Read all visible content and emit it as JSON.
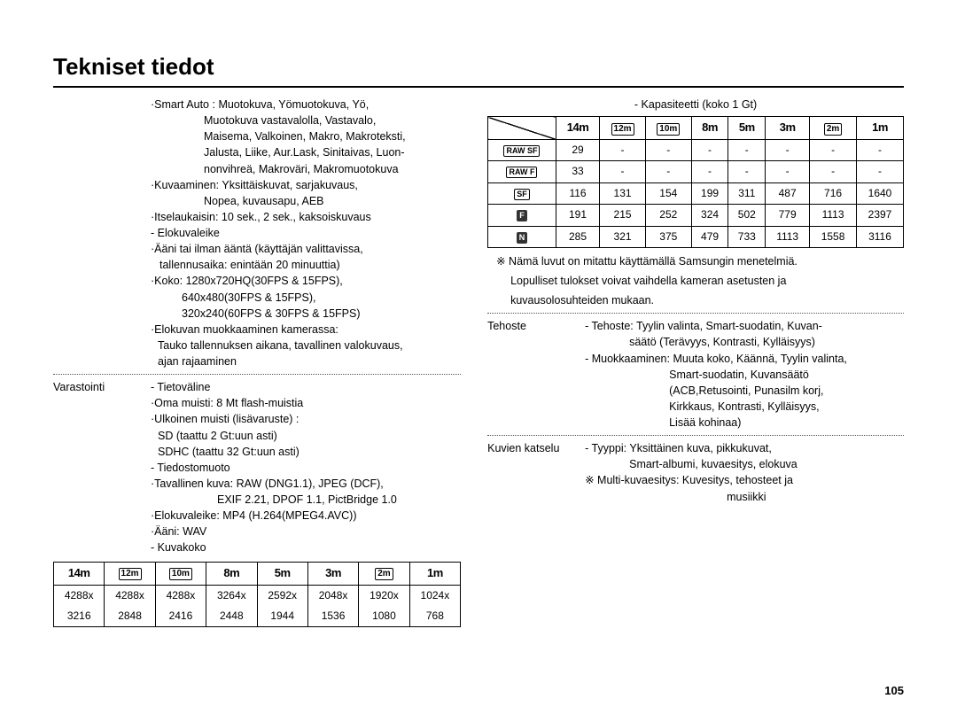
{
  "title": "Tekniset tiedot",
  "page_number": "105",
  "colors": {
    "text": "#000000",
    "bg": "#ffffff",
    "sep": "#555555"
  },
  "left": {
    "smart_auto_label": "·Smart Auto :",
    "smart_auto_l1": "Muotokuva, Yömuotokuva, Yö,",
    "smart_auto_l2": "Muotokuva vastavalolla, Vastavalo,",
    "smart_auto_l3": "Maisema, Valkoinen, Makro, Makroteksti,",
    "smart_auto_l4": "Jalusta, Liike, Aur.Lask, Sinitaivas, Luon-",
    "smart_auto_l5": "nonvihreä, Makroväri, Makromuotokuva",
    "kuvaaminen_l1": "·Kuvaaminen: Yksittäiskuvat, sarjakuvaus,",
    "kuvaaminen_l2": "Nopea, kuvausapu, AEB",
    "itselaukaisin": "·Itselaukaisin: 10 sek., 2 sek., kaksoiskuvaus",
    "elokuvaleike_h": "- Elokuvaleike",
    "aani_l1": "·Ääni tai ilman ääntä (käyttäjän valittavissa,",
    "aani_l2": "tallennusaika: enintään 20 minuuttia)",
    "koko_l1": "·Koko: 1280x720HQ(30FPS & 15FPS),",
    "koko_l2": "640x480(30FPS & 15FPS),",
    "koko_l3": "320x240(60FPS & 30FPS & 15FPS)",
    "elokuvan_l1": "·Elokuvan muokkaaminen kamerassa:",
    "elokuvan_l2": "Tauko tallennuksen aikana, tavallinen valokuvaus,",
    "elokuvan_l3": "ajan rajaaminen",
    "varastointi_label": "Varastointi",
    "tietovaline": "- Tietoväline",
    "oma_muisti": "·Oma muisti: 8 Mt flash-muistia",
    "ulkoinen_l1": "·Ulkoinen muisti (lisävaruste) :",
    "ulkoinen_l2": "SD (taattu 2 Gt:uun asti)",
    "ulkoinen_l3": "SDHC (taattu 32 Gt:uun asti)",
    "tiedostomuoto": "- Tiedostomuoto",
    "tav_l1": "·Tavallinen kuva: RAW (DNG1.1), JPEG (DCF),",
    "tav_l2": "EXIF 2.21, DPOF 1.1, PictBridge 1.0",
    "mp4": "·Elokuvaleike: MP4 (H.264(MPEG4.AVC))",
    "wav": "·Ääni: WAV",
    "kuvakoko": "- Kuvakoko",
    "size_headers": [
      "14m",
      "12m",
      "10m",
      "8m",
      "5m",
      "3m",
      "2m",
      "1m"
    ],
    "size_boxed": [
      false,
      true,
      true,
      false,
      false,
      false,
      true,
      false
    ],
    "size_r1": [
      "4288x",
      "4288x",
      "4288x",
      "3264x",
      "2592x",
      "2048x",
      "1920x",
      "1024x"
    ],
    "size_r2": [
      "3216",
      "2848",
      "2416",
      "2448",
      "1944",
      "1536",
      "1080",
      "768"
    ]
  },
  "right": {
    "capacity_title": "- Kapasiteetti (koko 1 Gt)",
    "cap_headers": [
      "14m",
      "12m",
      "10m",
      "8m",
      "5m",
      "3m",
      "2m",
      "1m"
    ],
    "cap_boxed": [
      false,
      true,
      true,
      false,
      false,
      false,
      true,
      false
    ],
    "row_labels": [
      "RAW SF",
      "RAW F",
      "SF",
      "F",
      "N"
    ],
    "row_label_dark": [
      false,
      false,
      false,
      true,
      true
    ],
    "cap_rows": [
      [
        "29",
        "-",
        "-",
        "-",
        "-",
        "-",
        "-",
        "-"
      ],
      [
        "33",
        "-",
        "-",
        "-",
        "-",
        "-",
        "-",
        "-"
      ],
      [
        "116",
        "131",
        "154",
        "199",
        "311",
        "487",
        "716",
        "1640"
      ],
      [
        "191",
        "215",
        "252",
        "324",
        "502",
        "779",
        "1113",
        "2397"
      ],
      [
        "285",
        "321",
        "375",
        "479",
        "733",
        "1113",
        "1558",
        "3116"
      ]
    ],
    "cap_note_l1": "※ Nämä luvut on mitattu käyttämällä Samsungin menetelmiä.",
    "cap_note_l2": "Lopulliset tulokset voivat vaihdella kameran asetusten ja",
    "cap_note_l3": "kuvausolosuhteiden mukaan.",
    "tehoste_label": "Tehoste",
    "teh_l1": "- Tehoste: Tyylin valinta, Smart-suodatin, Kuvan-",
    "teh_l2": "säätö (Terävyys, Kontrasti, Kylläisyys)",
    "teh_l3": "- Muokkaaminen: Muuta koko, Käännä, Tyylin valinta,",
    "teh_l4": "Smart-suodatin, Kuvansäätö",
    "teh_l5": "(ACB,Retusointi, Punasilm korj,",
    "teh_l6": "Kirkkaus, Kontrasti, Kylläisyys,",
    "teh_l7": "Lisää kohinaa)",
    "kuvien_label": "Kuvien katselu",
    "kv_l1": "- Tyyppi: Yksittäinen kuva, pikkukuvat,",
    "kv_l2": "Smart-albumi, kuvaesitys, elokuva",
    "kv_l3": "※ Multi-kuvaesitys: Kuvesitys, tehosteet ja",
    "kv_l4": "musiikki"
  }
}
